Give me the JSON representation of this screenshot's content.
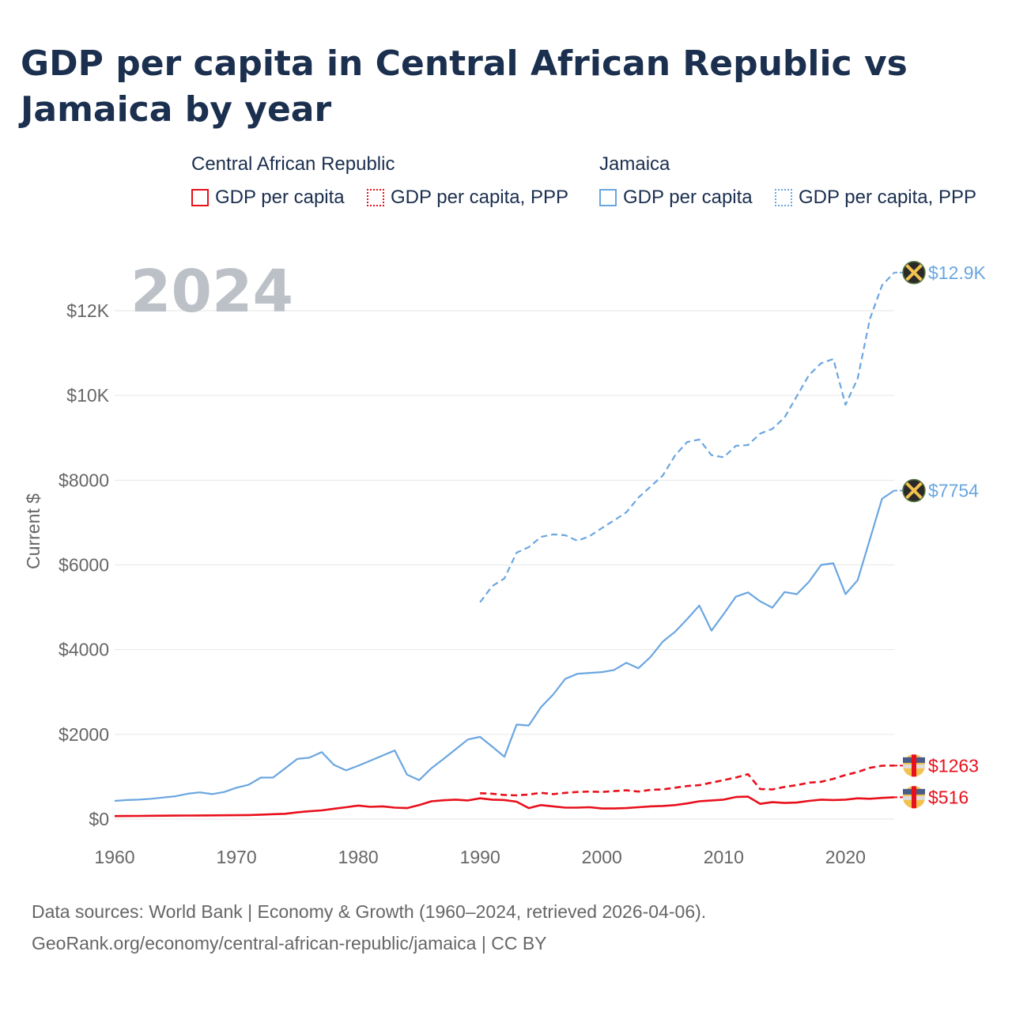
{
  "chart_data": {
    "type": "line",
    "title": "GDP per capita in Central African Republic vs Jamaica by year",
    "ylabel": "Current $",
    "xlabel": "",
    "year_label": "2024",
    "xlim": [
      1960,
      2024
    ],
    "ylim": [
      0,
      13000
    ],
    "x_ticks": [
      1960,
      1970,
      1980,
      1990,
      2000,
      2010,
      2020
    ],
    "y_ticks": [
      {
        "value": 0,
        "label": "$0"
      },
      {
        "value": 2000,
        "label": "$2000"
      },
      {
        "value": 4000,
        "label": "$4000"
      },
      {
        "value": 6000,
        "label": "$6000"
      },
      {
        "value": 8000,
        "label": "$8000"
      },
      {
        "value": 10000,
        "label": "$10K"
      },
      {
        "value": 12000,
        "label": "$12K"
      }
    ],
    "legend": {
      "groups": [
        {
          "name": "Central African Republic",
          "items": [
            {
              "label": "GDP per capita",
              "style": "solid"
            },
            {
              "label": "GDP per capita, PPP",
              "style": "dotted"
            }
          ]
        },
        {
          "name": "Jamaica",
          "items": [
            {
              "label": "GDP per capita",
              "style": "solid"
            },
            {
              "label": "GDP per capita, PPP",
              "style": "dotted"
            }
          ]
        }
      ]
    },
    "colors": {
      "car": "#e8101b",
      "jamaica": "#6aa6e0",
      "grid": "#e6e6e6",
      "axis_text": "#666666",
      "title": "#1b2f4f"
    },
    "series": [
      {
        "name": "Jamaica GDP per capita",
        "country": "jamaica",
        "style": "solid",
        "end_label": "$7754",
        "x": [
          1960,
          1961,
          1962,
          1963,
          1964,
          1965,
          1966,
          1967,
          1968,
          1969,
          1970,
          1971,
          1972,
          1973,
          1974,
          1975,
          1976,
          1977,
          1978,
          1979,
          1980,
          1981,
          1982,
          1983,
          1984,
          1985,
          1986,
          1987,
          1988,
          1989,
          1990,
          1991,
          1992,
          1993,
          1994,
          1995,
          1996,
          1997,
          1998,
          1999,
          2000,
          2001,
          2002,
          2003,
          2004,
          2005,
          2006,
          2007,
          2008,
          2009,
          2010,
          2011,
          2012,
          2013,
          2014,
          2015,
          2016,
          2017,
          2018,
          2019,
          2020,
          2021,
          2022,
          2023,
          2024
        ],
        "values": [
          430,
          450,
          460,
          480,
          510,
          540,
          600,
          630,
          590,
          640,
          740,
          810,
          980,
          980,
          1200,
          1420,
          1450,
          1580,
          1280,
          1150,
          1260,
          1380,
          1500,
          1620,
          1050,
          920,
          1200,
          1420,
          1650,
          1880,
          1940,
          1710,
          1470,
          2230,
          2210,
          2640,
          2940,
          3310,
          3430,
          3450,
          3470,
          3520,
          3690,
          3560,
          3830,
          4190,
          4420,
          4720,
          5040,
          4450,
          4840,
          5250,
          5350,
          5140,
          4990,
          5360,
          5310,
          5600,
          6000,
          6040,
          5310,
          5640,
          6600,
          7560,
          7754
        ]
      },
      {
        "name": "Jamaica GDP per capita, PPP",
        "country": "jamaica",
        "style": "dashed",
        "end_label": "$12.9K",
        "x": [
          1990,
          1991,
          1992,
          1993,
          1994,
          1995,
          1996,
          1997,
          1998,
          1999,
          2000,
          2001,
          2002,
          2003,
          2004,
          2005,
          2006,
          2007,
          2008,
          2009,
          2010,
          2011,
          2012,
          2013,
          2014,
          2015,
          2016,
          2017,
          2018,
          2019,
          2020,
          2021,
          2022,
          2023,
          2024
        ],
        "values": [
          5120,
          5500,
          5680,
          6290,
          6420,
          6660,
          6720,
          6700,
          6570,
          6680,
          6870,
          7050,
          7240,
          7590,
          7850,
          8110,
          8580,
          8900,
          8960,
          8590,
          8540,
          8810,
          8830,
          9100,
          9210,
          9480,
          9980,
          10480,
          10760,
          10860,
          9780,
          10400,
          11800,
          12600,
          12900
        ]
      },
      {
        "name": "Central African Republic GDP per capita, PPP",
        "country": "car",
        "style": "dashed",
        "end_label": "$1263",
        "x": [
          1990,
          1991,
          1992,
          1993,
          1994,
          1995,
          1996,
          1997,
          1998,
          1999,
          2000,
          2001,
          2002,
          2003,
          2004,
          2005,
          2006,
          2007,
          2008,
          2009,
          2010,
          2011,
          2012,
          2013,
          2014,
          2015,
          2016,
          2017,
          2018,
          2019,
          2020,
          2021,
          2022,
          2023,
          2024
        ],
        "values": [
          610,
          600,
          570,
          560,
          580,
          620,
          590,
          620,
          640,
          650,
          640,
          660,
          680,
          650,
          690,
          700,
          740,
          780,
          800,
          860,
          920,
          980,
          1060,
          710,
          700,
          760,
          800,
          860,
          880,
          950,
          1040,
          1110,
          1210,
          1260,
          1263
        ]
      },
      {
        "name": "Central African Republic GDP per capita",
        "country": "car",
        "style": "solid",
        "end_label": "$516",
        "x": [
          1960,
          1961,
          1962,
          1963,
          1964,
          1965,
          1966,
          1967,
          1968,
          1969,
          1970,
          1971,
          1972,
          1973,
          1974,
          1975,
          1976,
          1977,
          1978,
          1979,
          1980,
          1981,
          1982,
          1983,
          1984,
          1985,
          1986,
          1987,
          1988,
          1989,
          1990,
          1991,
          1992,
          1993,
          1994,
          1995,
          1996,
          1997,
          1998,
          1999,
          2000,
          2001,
          2002,
          2003,
          2004,
          2005,
          2006,
          2007,
          2008,
          2009,
          2010,
          2011,
          2012,
          2013,
          2014,
          2015,
          2016,
          2017,
          2018,
          2019,
          2020,
          2021,
          2022,
          2023,
          2024
        ],
        "values": [
          70,
          72,
          75,
          78,
          80,
          82,
          84,
          86,
          88,
          90,
          92,
          95,
          105,
          115,
          125,
          160,
          185,
          205,
          245,
          280,
          320,
          290,
          300,
          270,
          260,
          330,
          420,
          445,
          460,
          440,
          490,
          460,
          450,
          410,
          260,
          330,
          300,
          270,
          270,
          280,
          250,
          250,
          260,
          280,
          300,
          310,
          330,
          370,
          420,
          440,
          460,
          520,
          530,
          360,
          400,
          380,
          390,
          430,
          460,
          450,
          460,
          490,
          480,
          500,
          516
        ]
      }
    ]
  },
  "footer": {
    "line1": "Data sources: World Bank | Economy & Growth (1960–2024, retrieved 2026-04-06).",
    "line2": "GeoRank.org/economy/central-african-republic/jamaica | CC BY"
  }
}
